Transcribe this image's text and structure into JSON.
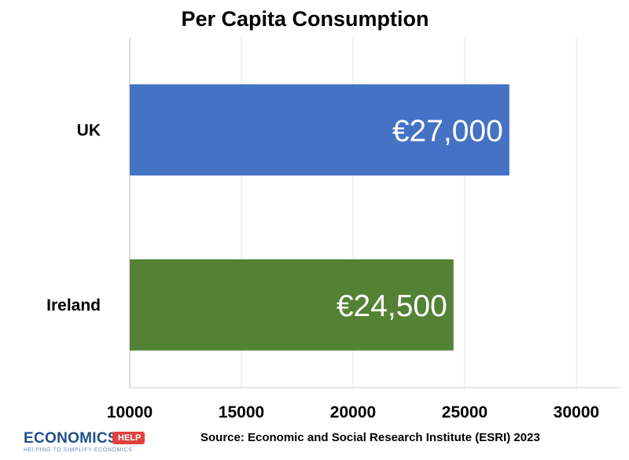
{
  "chart_data": {
    "type": "bar",
    "orientation": "horizontal",
    "title": "Per Capita Consumption",
    "categories": [
      "UK",
      "Ireland"
    ],
    "values": [
      27000,
      24500
    ],
    "data_labels": [
      "€27,000",
      "€24,500"
    ],
    "colors": [
      "#4472c4",
      "#548235"
    ],
    "xlim": [
      10000,
      30000
    ],
    "x_ticks": [
      "10000",
      "15000",
      "20000",
      "25000",
      "30000"
    ],
    "grid": true,
    "source": "Source: Economic and Social Research Institute (ESRI) 2023"
  },
  "logo": {
    "name": "ECONOMICS",
    "badge": "HELP",
    "tagline": "HELPING TO SIMPLIFY ECONOMICS"
  }
}
